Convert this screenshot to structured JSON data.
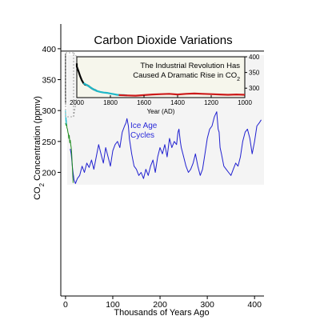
{
  "colors": {
    "ice_age": "#2020d0",
    "recent_green": "#1a8a1a",
    "recent_cyan": "#20b8c8",
    "industrial_black": "#000000",
    "preindustrial_red": "#cc1a1a",
    "panel_background": "#f4f4f4",
    "inset_background": "#f6f6ec",
    "callout_line": "#888888"
  },
  "chart_data": {
    "type": "line",
    "title": "Carbon Dioxide Variations",
    "xlabel": "Thousands of Years Ago",
    "ylabel": "CO2 Concentration (ppmv)",
    "ylabel_main": "CO",
    "ylabel_sub": "2",
    "ylabel_rest": " Concentration (ppmv)",
    "xlim": [
      -10,
      420
    ],
    "ylim": [
      0,
      440
    ],
    "x_ticks": [
      0,
      100,
      200,
      300,
      400
    ],
    "y_ticks": [
      200,
      250,
      300,
      350,
      400
    ],
    "annotation_line1": "Ice Age",
    "annotation_line2": "Cycles",
    "series": [
      {
        "name": "",
        "color": "#2020d0",
        "x": [
          10,
          12,
          15,
          18,
          21,
          25,
          30,
          35,
          40,
          45,
          50,
          55,
          60,
          65,
          70,
          75,
          80,
          85,
          90,
          95,
          100,
          105,
          110,
          115,
          120,
          125,
          128,
          130,
          133,
          135,
          140,
          145,
          150,
          155,
          160,
          165,
          170,
          175,
          180,
          185,
          190,
          195,
          200,
          205,
          210,
          215,
          220,
          225,
          230,
          235,
          238,
          240,
          243,
          245,
          250,
          255,
          260,
          265,
          270,
          275,
          280,
          285,
          290,
          295,
          300,
          305,
          310,
          315,
          320,
          323,
          325,
          327,
          330,
          335,
          340,
          345,
          350,
          355,
          360,
          365,
          370,
          375,
          380,
          385,
          390,
          395,
          400,
          405,
          410,
          414
        ],
        "y": [
          238,
          230,
          205,
          188,
          182,
          190,
          195,
          210,
          200,
          215,
          208,
          220,
          205,
          225,
          245,
          230,
          215,
          240,
          225,
          210,
          235,
          245,
          250,
          240,
          265,
          275,
          280,
          287,
          275,
          255,
          230,
          210,
          205,
          195,
          200,
          190,
          205,
          195,
          210,
          220,
          200,
          225,
          240,
          230,
          245,
          225,
          255,
          240,
          250,
          245,
          265,
          270,
          250,
          240,
          225,
          210,
          200,
          205,
          215,
          230,
          210,
          195,
          205,
          230,
          255,
          270,
          275,
          290,
          298,
          270,
          265,
          240,
          230,
          210,
          205,
          200,
          195,
          205,
          215,
          210,
          225,
          250,
          265,
          270,
          255,
          230,
          250,
          275,
          280,
          285
        ]
      },
      {
        "name": "",
        "color": "#1a8a1a",
        "x": [
          0,
          1,
          2,
          3,
          4,
          5,
          6,
          7,
          8,
          9,
          10,
          11,
          12,
          13,
          14,
          15,
          16
        ],
        "y": [
          280,
          276,
          280,
          272,
          270,
          265,
          262,
          255,
          260,
          248,
          252,
          245,
          240,
          230,
          215,
          200,
          183
        ]
      },
      {
        "name": "",
        "color": "#20b8c8",
        "x": [
          0,
          0.3,
          0.6,
          1,
          1.3,
          1.6,
          2
        ],
        "y": [
          300,
          290,
          282,
          285,
          288,
          278,
          284
        ]
      },
      {
        "name": "",
        "color": "#000000",
        "x": [
          0,
          0,
          0.1,
          0.15
        ],
        "y": [
          392,
          330,
          312,
          310
        ]
      }
    ],
    "inset": {
      "title_line1": "The Industrial Revolution Has",
      "title_line2_main": "Caused A Dramatic Rise in CO",
      "title_line2_sub": "2",
      "xlabel": "Year (AD)",
      "xlim": [
        2000,
        1000
      ],
      "ylim": [
        270,
        400
      ],
      "x_ticks": [
        2000,
        1800,
        1600,
        1400,
        1200,
        1000
      ],
      "y_ticks": [
        300,
        350,
        400
      ],
      "series": [
        {
          "name": "",
          "color": "#000000",
          "x": [
            2005,
            2000,
            1990,
            1980,
            1970,
            1960,
            1950,
            1940,
            1930,
            1920,
            1910,
            1900,
            1890,
            1880
          ],
          "y": [
            379,
            369,
            354,
            338,
            325,
            316,
            311,
            310,
            307,
            303,
            299,
            296,
            294,
            291
          ]
        },
        {
          "name": "",
          "color": "#20b8c8",
          "x": [
            1960,
            1940,
            1920,
            1900,
            1880,
            1860,
            1840,
            1820,
            1800,
            1780,
            1760,
            1740,
            1720,
            1700
          ],
          "y": [
            316,
            310,
            303,
            296,
            291,
            288,
            286,
            285,
            283,
            281,
            279,
            278,
            278,
            277
          ]
        },
        {
          "name": "",
          "color": "#cc1a1a",
          "x": [
            1750,
            1700,
            1650,
            1600,
            1550,
            1500,
            1450,
            1400,
            1350,
            1300,
            1250,
            1200,
            1150,
            1100,
            1050,
            1000
          ],
          "y": [
            278,
            277,
            276,
            278,
            280,
            281,
            282,
            280,
            282,
            283,
            282,
            281,
            280,
            279,
            280,
            279
          ]
        }
      ]
    }
  }
}
